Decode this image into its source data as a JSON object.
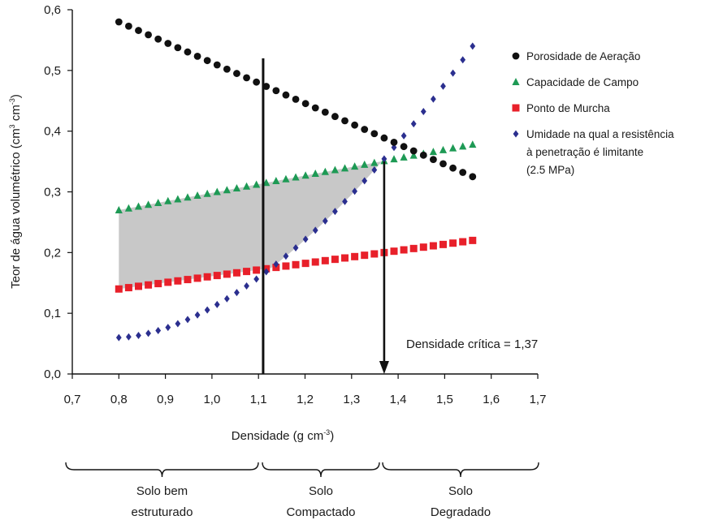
{
  "chart_data": {
    "type": "scatter",
    "xlabel": "Densidade (g cm",
    "xlabel_sup": "-3",
    "xlabel_close": ")",
    "ylabel": "Teor de água volumétrico (cm",
    "ylabel_sup1": "3",
    "ylabel_mid": " cm",
    "ylabel_sup2": "-3",
    "ylabel_close": ")",
    "xlim": [
      0.7,
      1.7
    ],
    "ylim": [
      0.0,
      0.6
    ],
    "x_ticks": [
      "0,7",
      "0,8",
      "0,9",
      "1,0",
      "1,1",
      "1,2",
      "1,3",
      "1,4",
      "1,5",
      "1,6",
      "1,7"
    ],
    "x_tick_values": [
      0.7,
      0.8,
      0.9,
      1.0,
      1.1,
      1.2,
      1.3,
      1.4,
      1.5,
      1.6,
      1.7
    ],
    "y_ticks": [
      "0,0",
      "0,1",
      "0,2",
      "0,3",
      "0,4",
      "0,5",
      "0,6"
    ],
    "y_tick_values": [
      0.0,
      0.1,
      0.2,
      0.3,
      0.4,
      0.5,
      0.6
    ],
    "legend_position": "right",
    "series": [
      {
        "name": "Porosidade de Aeração",
        "marker": "circle",
        "color": "#111111",
        "x_start": 0.8,
        "x_end": 1.56,
        "count": 37,
        "y_start": 0.58,
        "y_end": 0.325
      },
      {
        "name": "Capacidade de Campo",
        "marker": "triangle",
        "color": "#1e9a55",
        "x_start": 0.8,
        "x_end": 1.56,
        "count": 37,
        "y_start": 0.27,
        "y_end": 0.378
      },
      {
        "name": "Ponto de Murcha",
        "marker": "square",
        "color": "#e8202a",
        "x_start": 0.8,
        "x_end": 1.56,
        "count": 37,
        "y_start": 0.14,
        "y_end": 0.22
      },
      {
        "name": "Umidade na qual a resistência à penetração é limitante (2.5 MPa)",
        "name_lines": [
          "Umidade na qual a resistência",
          "à penetração é limitante",
          "(2.5 MPa)"
        ],
        "marker": "diamond",
        "color": "#2b2f8f",
        "x_start": 0.8,
        "x_end": 1.56,
        "count": 37,
        "y_start": 0.06,
        "y_end": 0.54,
        "curve_exponent": 1.7
      }
    ],
    "shaded_region": {
      "x_start": 0.8,
      "x_end": 1.37,
      "color": "#c8c8c8"
    },
    "vertical_line": {
      "x": 1.11,
      "y_top": 0.52
    },
    "arrow": {
      "x": 1.37,
      "y_top": 0.35,
      "y_bottom": 0.0
    },
    "annotation": {
      "text": "Densidade crítica = 1,37",
      "x": 1.42,
      "y": 0.05
    },
    "zones": [
      {
        "line1": "Solo bem",
        "line2": "estruturado",
        "x_start": 0.8,
        "x_end": 1.11
      },
      {
        "line1": "Solo",
        "line2": "Compactado",
        "x_start": 1.11,
        "x_end": 1.37
      },
      {
        "line1": "Solo",
        "line2": "Degradado",
        "x_start": 1.37,
        "x_end": 1.56
      }
    ]
  }
}
